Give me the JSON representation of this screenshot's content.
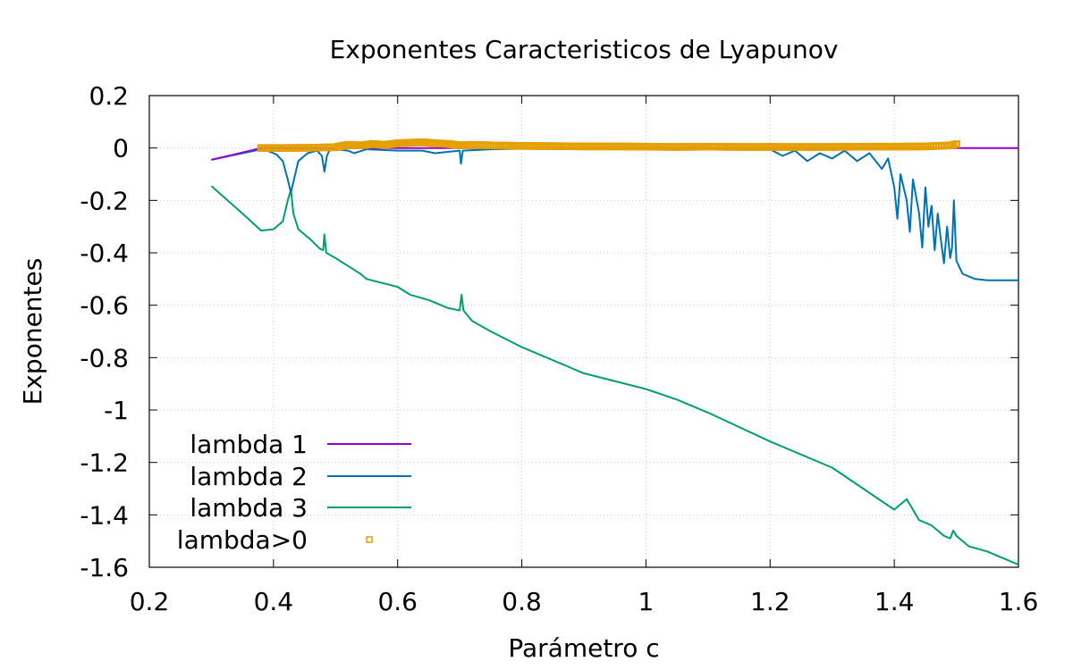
{
  "chart_data": {
    "type": "line",
    "title": "Exponentes Caracteristicos de Lyapunov",
    "xlabel": "Parámetro c",
    "ylabel": "Exponentes",
    "xlim": [
      0.2,
      1.6
    ],
    "ylim": [
      -1.6,
      0.2
    ],
    "xticks": [
      0.2,
      0.4,
      0.6,
      0.8,
      1.0,
      1.2,
      1.4,
      1.6
    ],
    "xtick_labels": [
      "0.2",
      "0.4",
      "0.6",
      "0.8",
      "1",
      "1.2",
      "1.4",
      "1.6"
    ],
    "yticks": [
      0.2,
      0,
      -0.2,
      -0.4,
      -0.6,
      -0.8,
      -1.0,
      -1.2,
      -1.4,
      -1.6
    ],
    "ytick_labels": [
      "0.2",
      "0",
      "-0.2",
      "-0.4",
      "-0.6",
      "-0.8",
      "-1",
      "-1.2",
      "-1.4",
      "-1.6"
    ],
    "grid": true,
    "legend_position": "bottom-left",
    "series": [
      {
        "name": "lambda 1",
        "style": "line",
        "color": "#9400d3",
        "x": [
          0.3,
          0.38,
          0.5,
          0.7,
          0.9,
          1.1,
          1.3,
          1.5,
          1.6
        ],
        "y": [
          -0.045,
          0.0,
          0.0,
          0.0,
          0.0,
          0.0,
          0.0,
          0.0,
          0.0
        ]
      },
      {
        "name": "lambda 2",
        "style": "line",
        "color": "#0072b2",
        "x": [
          0.3,
          0.34,
          0.38,
          0.39,
          0.405,
          0.415,
          0.423,
          0.428,
          0.432,
          0.44,
          0.455,
          0.47,
          0.478,
          0.482,
          0.486,
          0.49,
          0.5,
          0.52,
          0.53,
          0.55,
          0.6,
          0.64,
          0.66,
          0.7,
          0.702,
          0.705,
          0.75,
          0.8,
          0.9,
          1.0,
          1.1,
          1.2,
          1.22,
          1.24,
          1.26,
          1.28,
          1.3,
          1.32,
          1.34,
          1.36,
          1.38,
          1.39,
          1.4,
          1.405,
          1.41,
          1.42,
          1.425,
          1.43,
          1.44,
          1.445,
          1.45,
          1.455,
          1.46,
          1.465,
          1.47,
          1.475,
          1.48,
          1.485,
          1.49,
          1.493,
          1.496,
          1.5,
          1.51,
          1.53,
          1.55,
          1.6
        ],
        "y": [
          -0.045,
          -0.025,
          -0.005,
          -0.01,
          -0.025,
          -0.05,
          -0.12,
          -0.17,
          -0.13,
          -0.05,
          -0.02,
          -0.01,
          -0.03,
          -0.09,
          -0.03,
          -0.01,
          -0.005,
          -0.01,
          -0.02,
          -0.005,
          -0.01,
          -0.01,
          -0.02,
          -0.01,
          -0.06,
          -0.01,
          -0.005,
          -0.003,
          -0.003,
          -0.003,
          -0.005,
          -0.005,
          -0.03,
          -0.01,
          -0.05,
          -0.02,
          -0.04,
          -0.01,
          -0.05,
          -0.02,
          -0.08,
          -0.04,
          -0.15,
          -0.27,
          -0.1,
          -0.2,
          -0.32,
          -0.12,
          -0.25,
          -0.38,
          -0.15,
          -0.3,
          -0.22,
          -0.39,
          -0.25,
          -0.35,
          -0.44,
          -0.3,
          -0.42,
          -0.38,
          -0.2,
          -0.43,
          -0.48,
          -0.5,
          -0.505,
          -0.505
        ]
      },
      {
        "name": "lambda 3",
        "style": "line",
        "color": "#009e73",
        "x": [
          0.3,
          0.35,
          0.38,
          0.4,
          0.415,
          0.423,
          0.428,
          0.432,
          0.44,
          0.46,
          0.475,
          0.48,
          0.482,
          0.485,
          0.5,
          0.52,
          0.54,
          0.55,
          0.6,
          0.62,
          0.65,
          0.68,
          0.7,
          0.703,
          0.706,
          0.72,
          0.75,
          0.8,
          0.9,
          1.0,
          1.05,
          1.1,
          1.2,
          1.3,
          1.35,
          1.4,
          1.42,
          1.44,
          1.46,
          1.48,
          1.49,
          1.495,
          1.5,
          1.52,
          1.55,
          1.6
        ],
        "y": [
          -0.145,
          -0.25,
          -0.315,
          -0.31,
          -0.28,
          -0.2,
          -0.16,
          -0.25,
          -0.31,
          -0.35,
          -0.385,
          -0.39,
          -0.33,
          -0.4,
          -0.42,
          -0.45,
          -0.48,
          -0.5,
          -0.53,
          -0.56,
          -0.58,
          -0.61,
          -0.62,
          -0.56,
          -0.62,
          -0.66,
          -0.7,
          -0.76,
          -0.86,
          -0.92,
          -0.96,
          -1.01,
          -1.12,
          -1.22,
          -1.3,
          -1.38,
          -1.34,
          -1.42,
          -1.44,
          -1.48,
          -1.49,
          -1.46,
          -1.48,
          -1.52,
          -1.54,
          -1.59
        ]
      },
      {
        "name": "lambda>0",
        "style": "points",
        "color": "#e69f00",
        "x": [
          0.38,
          0.42,
          0.46,
          0.5,
          0.52,
          0.54,
          0.56,
          0.58,
          0.6,
          0.62,
          0.64,
          0.66,
          0.68,
          0.7,
          0.72,
          0.75,
          0.8,
          0.85,
          0.9,
          0.95,
          1.0,
          1.05,
          1.1,
          1.15,
          1.2,
          1.25,
          1.3,
          1.35,
          1.4,
          1.45,
          1.49,
          1.5
        ],
        "y": [
          0.0,
          0.0,
          0.001,
          0.003,
          0.012,
          0.01,
          0.015,
          0.012,
          0.018,
          0.02,
          0.022,
          0.018,
          0.016,
          0.01,
          0.012,
          0.01,
          0.008,
          0.007,
          0.006,
          0.006,
          0.005,
          0.004,
          0.005,
          0.004,
          0.004,
          0.004,
          0.004,
          0.005,
          0.005,
          0.006,
          0.01,
          0.015
        ]
      }
    ]
  }
}
